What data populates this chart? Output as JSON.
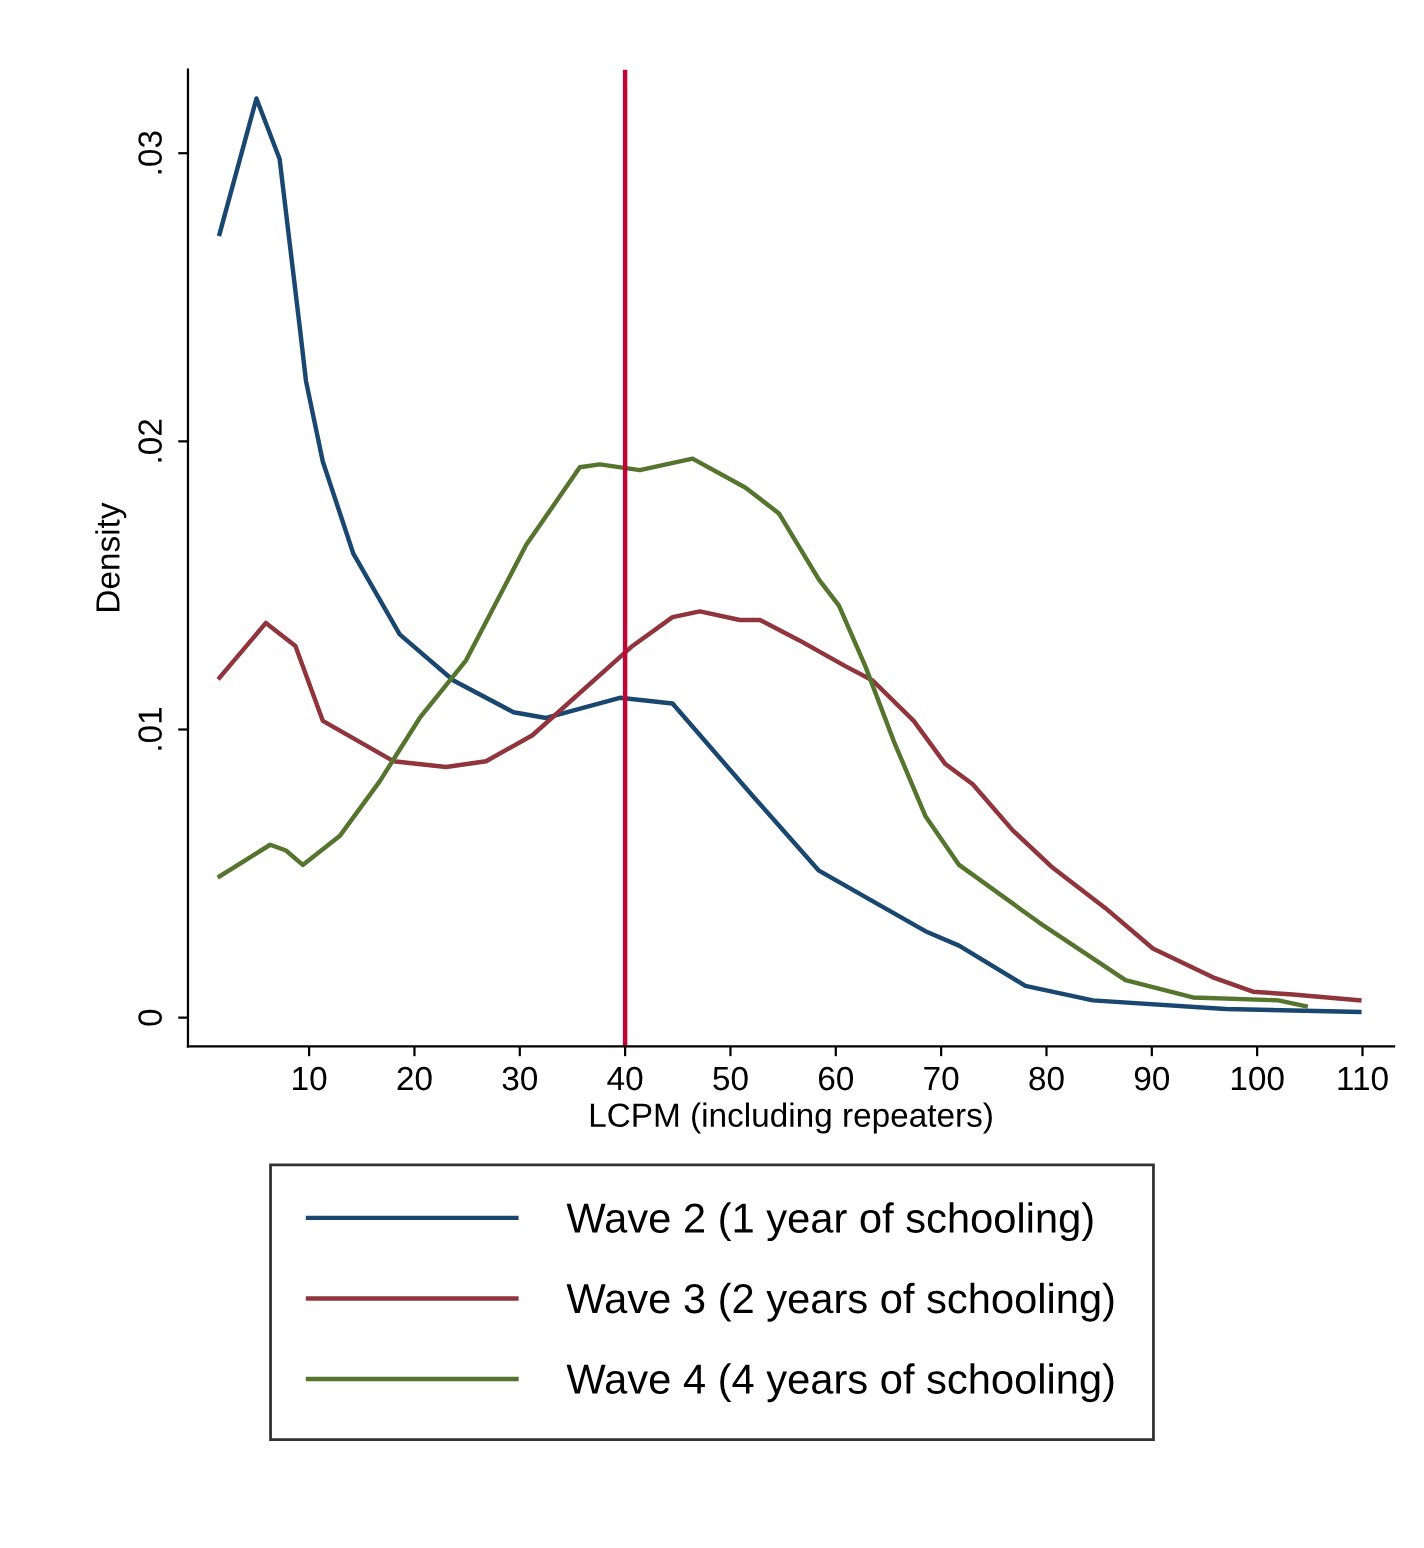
{
  "chart_data": {
    "type": "line",
    "xlabel": "LCPM (including repeaters)",
    "ylabel": "Density",
    "xlim": [
      -1.5,
      113
    ],
    "ylim": [
      -0.001,
      0.0329
    ],
    "xticks": [
      10,
      20,
      30,
      40,
      50,
      60,
      70,
      80,
      90,
      100,
      110
    ],
    "yticks": [
      {
        "value": 0,
        "label": "0"
      },
      {
        "value": 0.01,
        "label": ".01"
      },
      {
        "value": 0.02,
        "label": ".02"
      },
      {
        "value": 0.03,
        "label": ".03"
      }
    ],
    "grid": false,
    "legend": "bottom",
    "marker": "none",
    "line_style": "solid",
    "ref_lines": [
      {
        "axis": "x",
        "value": 40,
        "label": null,
        "color": "#c10534"
      }
    ],
    "series": [
      {
        "name": "Wave 2 (1 year of schooling)",
        "color": "#1a476f",
        "x": [
          1.5,
          5.0,
          7.2,
          9.1,
          9.7,
          11.3,
          14.2,
          18.6,
          23.7,
          29.4,
          32.5,
          39.5,
          44.5,
          52.1,
          58.4,
          68.5,
          71.7,
          78,
          84.4,
          97,
          109.7
        ],
        "values": [
          0.0272,
          0.0319,
          0.0298,
          0.024,
          0.0221,
          0.0193,
          0.0161,
          0.0133,
          0.0117,
          0.0106,
          0.0104,
          0.0111,
          0.0109,
          0.0077,
          0.0051,
          0.003,
          0.0025,
          0.0011,
          0.0006,
          0.0003,
          0.0002
        ]
      },
      {
        "name": "Wave 3 (2 years of schooling)",
        "color": "#90353b",
        "x": [
          1.5,
          5.9,
          8.7,
          11.3,
          18,
          23,
          26.8,
          31.2,
          40.7,
          44.5,
          47.1,
          50.9,
          52.8,
          56.5,
          60.9,
          63.5,
          67.4,
          70.4,
          73,
          76.8,
          80.6,
          85.6,
          90.1,
          95.8,
          99.6,
          103.4,
          109.7
        ],
        "values": [
          0.0118,
          0.0137,
          0.0129,
          0.0103,
          0.0089,
          0.0087,
          0.0089,
          0.0098,
          0.0129,
          0.0139,
          0.0141,
          0.0138,
          0.0138,
          0.0131,
          0.0122,
          0.0117,
          0.0103,
          0.0088,
          0.0081,
          0.0065,
          0.0052,
          0.0038,
          0.0024,
          0.0014,
          0.0009,
          0.0008,
          0.0006
        ]
      },
      {
        "name": "Wave 4 (4 years of schooling)",
        "color": "#55752f",
        "x": [
          1.5,
          6.3,
          7.8,
          9.4,
          12.9,
          16.7,
          20.5,
          24.9,
          30.6,
          35.7,
          37.6,
          41.4,
          46.4,
          51.4,
          54.6,
          58.4,
          60.3,
          62.8,
          65.5,
          68.5,
          71.7,
          79.3,
          87.5,
          93.9,
          102,
          104.6
        ],
        "values": [
          0.0049,
          0.006,
          0.0058,
          0.0053,
          0.0063,
          0.0082,
          0.0104,
          0.0124,
          0.0164,
          0.0191,
          0.0192,
          0.019,
          0.0194,
          0.0184,
          0.0175,
          0.0152,
          0.0143,
          0.0122,
          0.0096,
          0.007,
          0.0053,
          0.0033,
          0.0013,
          0.0007,
          0.0006,
          0.0004
        ]
      }
    ]
  }
}
